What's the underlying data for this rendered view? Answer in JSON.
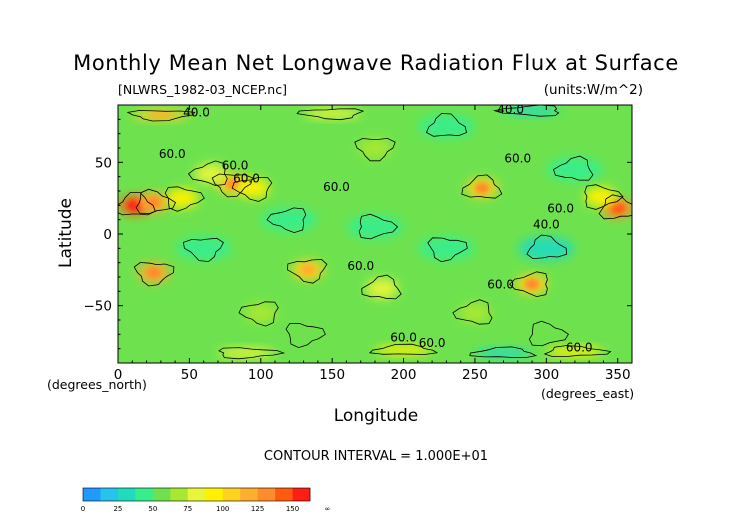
{
  "chart_data": {
    "type": "heatmap",
    "title": "Monthly Mean Net Longwave Radiation Flux at Surface",
    "file_label": "[NLWRS_1982-03_NCEP.nc]",
    "units_label": "(units:W/m^2)",
    "xlabel": "Longitude",
    "ylabel": "Latitude",
    "x_unit_label": "(degrees_east)",
    "y_unit_label": "(degrees_north)",
    "xlim": [
      0,
      360
    ],
    "ylim": [
      -90,
      90
    ],
    "x_ticks": [
      "0",
      "50",
      "100",
      "150",
      "200",
      "250",
      "300",
      "350"
    ],
    "y_ticks": [
      "50",
      "0",
      "−50"
    ],
    "contour_interval_text": "CONTOUR INTERVAL = 1.000E+01",
    "contour_labels": [
      {
        "text": "40.0",
        "lon": 55,
        "lat": 82
      },
      {
        "text": "40.0",
        "lon": 275,
        "lat": 84
      },
      {
        "text": "60.0",
        "lon": 38,
        "lat": 53
      },
      {
        "text": "60.0",
        "lon": 90,
        "lat": 36
      },
      {
        "text": "60.0",
        "lon": 82,
        "lat": 45
      },
      {
        "text": "60.0",
        "lon": 153,
        "lat": 30
      },
      {
        "text": "60.0",
        "lon": 280,
        "lat": 50
      },
      {
        "text": "60.0",
        "lon": 310,
        "lat": 15
      },
      {
        "text": "40.0",
        "lon": 300,
        "lat": 4
      },
      {
        "text": "60.0",
        "lon": 170,
        "lat": -25
      },
      {
        "text": "60.0",
        "lon": 268,
        "lat": -38
      },
      {
        "text": "60.0",
        "lon": 200,
        "lat": -75
      },
      {
        "text": "60.0",
        "lon": 220,
        "lat": -79
      },
      {
        "text": "60.0",
        "lon": 323,
        "lat": -82
      }
    ],
    "colorbar": {
      "bounds": [
        0,
        12.5,
        25,
        37.5,
        50,
        62.5,
        75,
        87.5,
        100,
        112.5,
        125,
        137.5,
        150,
        162.5
      ],
      "tick_labels": [
        "0",
        "25",
        "50",
        "75",
        "100",
        "125",
        "150",
        "∞"
      ],
      "colors": [
        "#1f9bff",
        "#25c3ee",
        "#21dcbc",
        "#37ee8c",
        "#6ee24e",
        "#a8e832",
        "#e8f53a",
        "#fff200",
        "#ffd21e",
        "#ffae2e",
        "#ff8c2c",
        "#ff5a12",
        "#ff1e14"
      ]
    },
    "field_regions": [
      {
        "lon": 12,
        "lat": 20,
        "value": 140
      },
      {
        "lon": 25,
        "lat": 22,
        "value": 120
      },
      {
        "lon": 45,
        "lat": 25,
        "value": 95
      },
      {
        "lon": 80,
        "lat": 35,
        "value": 110
      },
      {
        "lon": 95,
        "lat": 32,
        "value": 90
      },
      {
        "lon": 65,
        "lat": 42,
        "value": 80
      },
      {
        "lon": 255,
        "lat": 32,
        "value": 110
      },
      {
        "lon": 350,
        "lat": 18,
        "value": 125
      },
      {
        "lon": 338,
        "lat": 26,
        "value": 95
      },
      {
        "lon": 25,
        "lat": -27,
        "value": 120
      },
      {
        "lon": 133,
        "lat": -25,
        "value": 100
      },
      {
        "lon": 290,
        "lat": -35,
        "value": 110
      },
      {
        "lon": 185,
        "lat": -38,
        "value": 80
      },
      {
        "lon": 300,
        "lat": -10,
        "value": 35
      },
      {
        "lon": 180,
        "lat": 5,
        "value": 38
      },
      {
        "lon": 230,
        "lat": -10,
        "value": 38
      },
      {
        "lon": 60,
        "lat": -10,
        "value": 40
      },
      {
        "lon": 120,
        "lat": 10,
        "value": 42
      },
      {
        "lon": 320,
        "lat": 45,
        "value": 40
      },
      {
        "lon": 230,
        "lat": 75,
        "value": 40
      },
      {
        "lon": 300,
        "lat": -70,
        "value": 50
      },
      {
        "lon": 130,
        "lat": -70,
        "value": 55
      },
      {
        "lon": 180,
        "lat": 60,
        "value": 70
      },
      {
        "lon": 100,
        "lat": -55,
        "value": 65
      },
      {
        "lon": 250,
        "lat": -55,
        "value": 68
      },
      {
        "lon": 200,
        "lat": -81,
        "value": 95
      },
      {
        "lon": 320,
        "lat": -82,
        "value": 90
      },
      {
        "lon": 90,
        "lat": -83,
        "value": 80
      },
      {
        "lon": 30,
        "lat": 83,
        "value": 100
      },
      {
        "lon": 150,
        "lat": 84,
        "value": 75
      },
      {
        "lon": 290,
        "lat": 86,
        "value": 30
      },
      {
        "lon": 270,
        "lat": -83,
        "value": 30
      }
    ],
    "background_value": 60
  }
}
